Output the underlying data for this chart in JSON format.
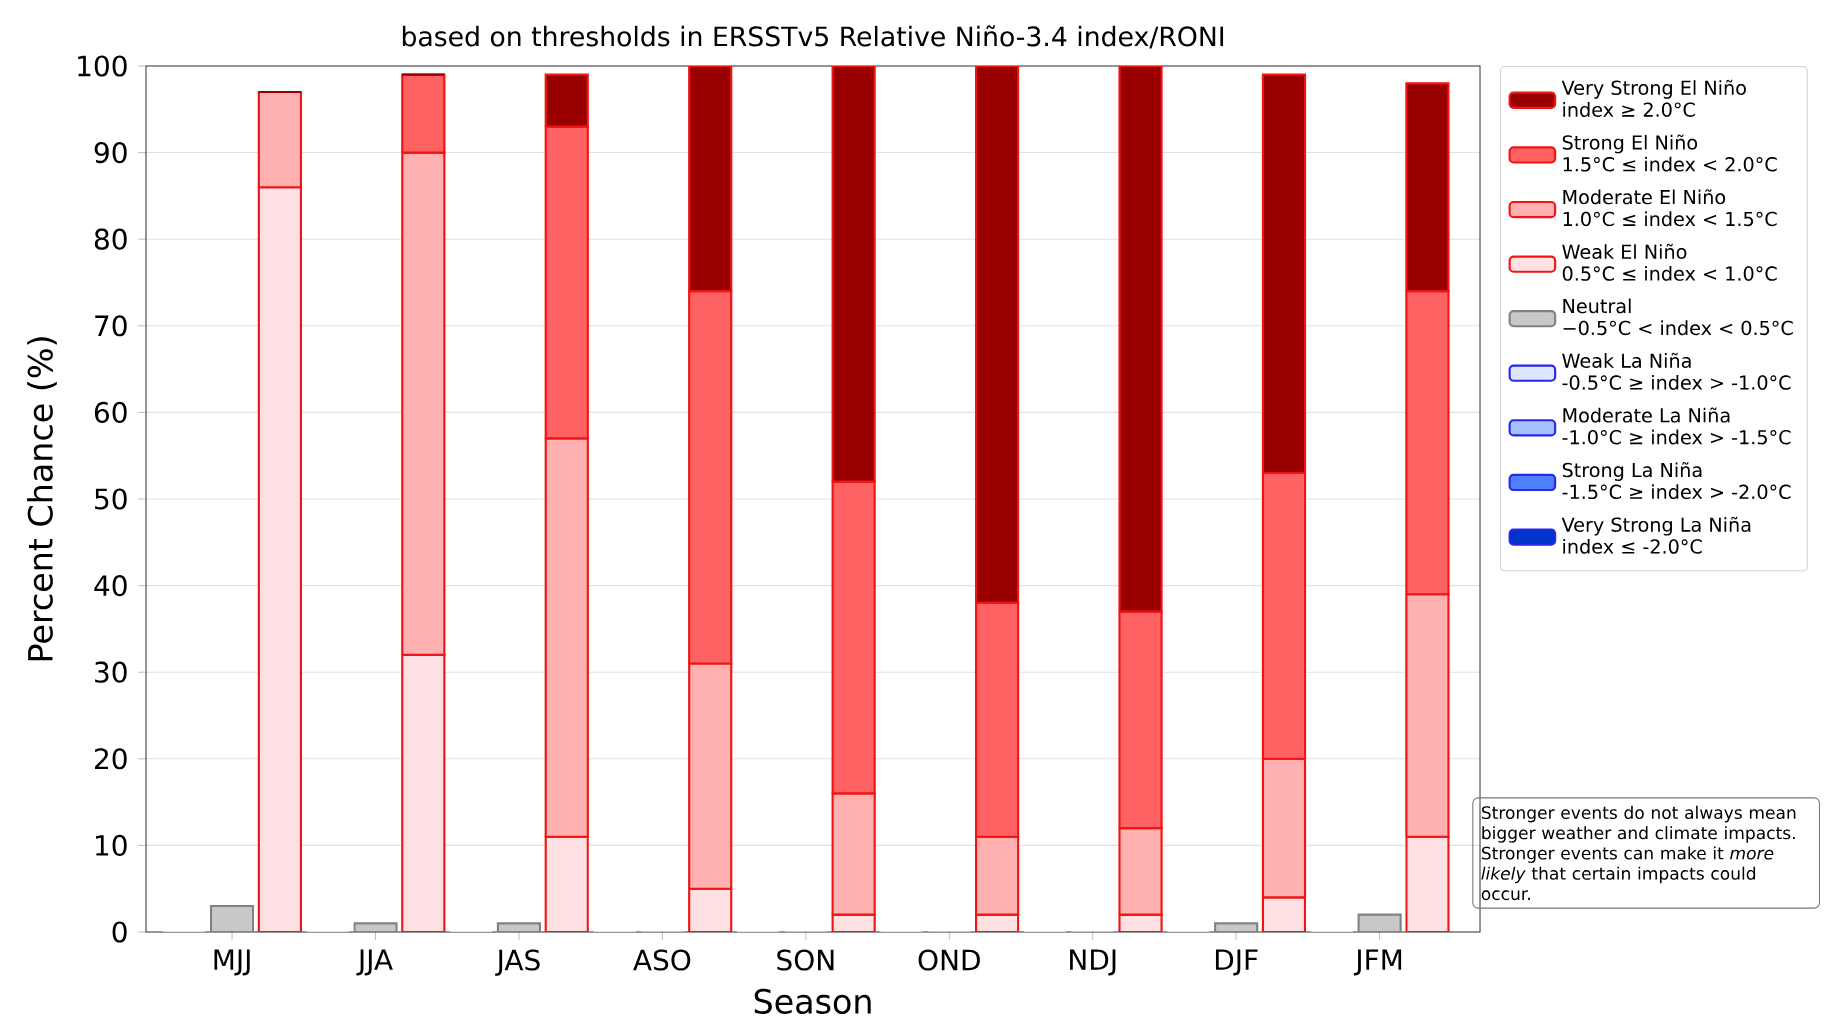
{
  "chart_data": {
    "type": "bar",
    "stacked": true,
    "title": "based on thresholds in ERSSTv5 Relative Niño-3.4 index/RONI",
    "xlabel": "Season",
    "ylabel": "Percent Chance (%)",
    "categories": [
      null,
      "MJJ",
      null,
      null,
      "JJA",
      null,
      null,
      "JAS",
      null,
      null,
      "ASO",
      null,
      null,
      "SON",
      null,
      null,
      "OND",
      null,
      null,
      "NDJ",
      null,
      null,
      "DJF",
      null,
      null,
      "JFM",
      null
    ],
    "ylim": [
      0,
      100
    ],
    "yticks": [
      0,
      10,
      20,
      30,
      40,
      50,
      60,
      70,
      80,
      90,
      100
    ],
    "grid": "y",
    "legend": "right",
    "series": [
      {
        "name": "Very Strong La Niña\nindex ≤ -2.0°C",
        "color": "#0033cc",
        "values": [
          0,
          null,
          null,
          0,
          null,
          null,
          0,
          null,
          null,
          0,
          null,
          null,
          0,
          null,
          null,
          0,
          null,
          null,
          0,
          null,
          null,
          0,
          null,
          null,
          0,
          null,
          null
        ]
      },
      {
        "name": "Strong La Niña\n-1.5°C ≥ index > -2.0°C",
        "color": "#4d7fff",
        "values": [
          0,
          null,
          null,
          0,
          null,
          null,
          0,
          null,
          null,
          0,
          null,
          null,
          0,
          null,
          null,
          0,
          null,
          null,
          0,
          null,
          null,
          0,
          null,
          null,
          0,
          null,
          null
        ]
      },
      {
        "name": "Moderate La Niña\n-1.0°C ≥ index > -1.5°C",
        "color": "#a6bfff",
        "values": [
          0,
          null,
          null,
          0,
          null,
          null,
          0,
          null,
          null,
          0,
          null,
          null,
          0,
          null,
          null,
          0,
          null,
          null,
          0,
          null,
          null,
          0,
          null,
          null,
          0,
          null,
          null
        ]
      },
      {
        "name": "Weak La Niña\n-0.5°C ≥ index > -1.0°C",
        "color": "#dde6ff",
        "values": [
          0,
          null,
          null,
          0,
          null,
          null,
          0,
          null,
          null,
          0,
          null,
          null,
          0,
          null,
          null,
          0,
          null,
          null,
          0,
          null,
          null,
          0,
          null,
          null,
          0,
          null,
          null
        ]
      },
      {
        "name": "Neutral\n−0.5°C < index < 0.5°C",
        "color": "#c8c8c8",
        "values": [
          null,
          3,
          null,
          null,
          1,
          null,
          null,
          1,
          null,
          null,
          0,
          null,
          null,
          0,
          null,
          null,
          0,
          null,
          null,
          0,
          null,
          null,
          1,
          null,
          null,
          2,
          null
        ]
      },
      {
        "name": "Weak El Niño\n0.5°C ≤ index < 1.0°C",
        "color": "#ffe1e4",
        "values": [
          null,
          null,
          86,
          null,
          null,
          32,
          null,
          null,
          11,
          null,
          null,
          5,
          null,
          null,
          2,
          null,
          null,
          2,
          null,
          null,
          2,
          null,
          null,
          4,
          null,
          null,
          11
        ]
      },
      {
        "name": "Moderate El Niño\n1.0°C ≤ index < 1.5°C",
        "color": "#ffb0b0",
        "values": [
          null,
          null,
          11,
          null,
          null,
          58,
          null,
          null,
          46,
          null,
          null,
          26,
          null,
          null,
          14,
          null,
          null,
          9,
          null,
          null,
          10,
          null,
          null,
          16,
          null,
          null,
          28
        ]
      },
      {
        "name": "Strong El Niño\n1.5°C ≤ index < 2.0°C",
        "color": "#ff6262",
        "values": [
          null,
          null,
          0,
          null,
          null,
          9,
          null,
          null,
          36,
          null,
          null,
          43,
          null,
          null,
          36,
          null,
          null,
          27,
          null,
          null,
          25,
          null,
          null,
          33,
          null,
          null,
          35
        ]
      },
      {
        "name": "Very Strong El Niño\nindex ≥ 2.0°C",
        "color": "#990000",
        "values": [
          null,
          null,
          0,
          null,
          null,
          0,
          null,
          null,
          6,
          null,
          null,
          26,
          null,
          null,
          48,
          null,
          null,
          62,
          null,
          null,
          63,
          null,
          null,
          46,
          null,
          null,
          24
        ]
      }
    ],
    "annotations": [
      "Stronger events do not always mean bigger weather and climate impacts. Stronger events can make it *more likely* that certain impacts could occur."
    ]
  }
}
